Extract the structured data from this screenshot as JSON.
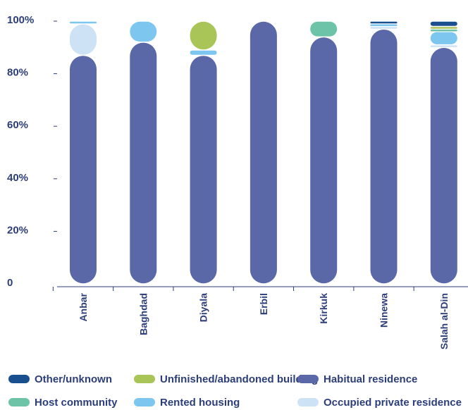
{
  "chart_data": {
    "type": "bar",
    "stacked": true,
    "title": "",
    "xlabel": "",
    "ylabel": "",
    "ylim": [
      0,
      100
    ],
    "y_ticks": [
      "0",
      "20%",
      "40%",
      "60%",
      "80%",
      "100%"
    ],
    "y_tick_values": [
      0,
      20,
      40,
      60,
      80,
      100
    ],
    "categories": [
      "Anbar",
      "Baghdad",
      "Diyala",
      "Erbil",
      "Kirkuk",
      "Ninewa",
      "Salah al-Din"
    ],
    "series": [
      {
        "name": "Habitual residence",
        "color": "#5b68a8",
        "values": [
          87,
          92,
          87,
          100,
          94,
          97,
          90
        ]
      },
      {
        "name": "Occupied private residence",
        "color": "#cde3f5",
        "values": [
          12,
          0,
          0,
          0,
          0,
          1,
          1
        ]
      },
      {
        "name": "Rented housing",
        "color": "#7cc6ef",
        "values": [
          1,
          8,
          2,
          0,
          0,
          1,
          5
        ]
      },
      {
        "name": "Host community",
        "color": "#6cc3a7",
        "values": [
          0,
          0,
          0,
          0,
          6,
          0,
          1
        ]
      },
      {
        "name": "Unfinished/abandoned building",
        "color": "#a9c457",
        "values": [
          0,
          0,
          11,
          0,
          0,
          0,
          1
        ]
      },
      {
        "name": "Other/unknown",
        "color": "#1a4f8f",
        "values": [
          0,
          0,
          0,
          0,
          0,
          1,
          2
        ]
      }
    ],
    "legend_rows": [
      [
        "Other/unknown",
        "Unfinished/abandoned building",
        "Habitual residence"
      ],
      [
        "Host community",
        "Rented housing",
        "Occupied private residence"
      ]
    ],
    "legend_position": "bottom",
    "grid": false
  },
  "colors": {
    "text": "#2c3e7a",
    "axis": "#2c3e7a"
  }
}
